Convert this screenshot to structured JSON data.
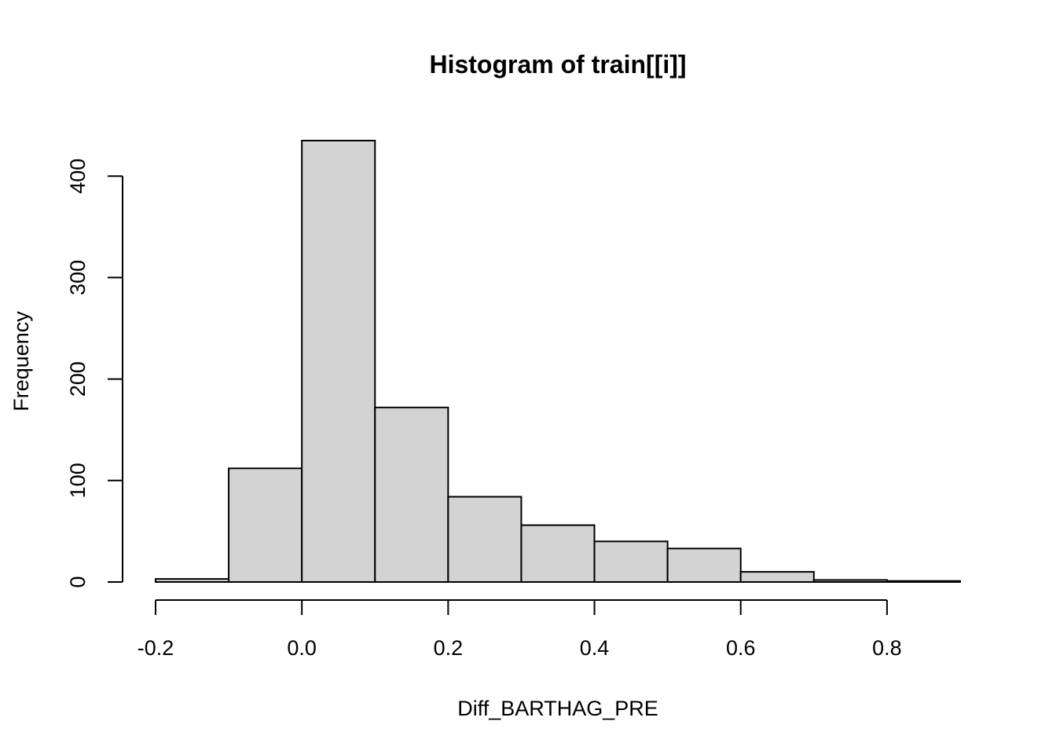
{
  "chart_data": {
    "type": "bar",
    "title": "Histogram of train[[i]]",
    "xlabel": "Diff_BARTHAG_PRE",
    "ylabel": "Frequency",
    "bins": [
      {
        "from": -0.2,
        "to": -0.1,
        "count": 3
      },
      {
        "from": -0.1,
        "to": 0.0,
        "count": 112
      },
      {
        "from": 0.0,
        "to": 0.1,
        "count": 435
      },
      {
        "from": 0.1,
        "to": 0.2,
        "count": 172
      },
      {
        "from": 0.2,
        "to": 0.3,
        "count": 84
      },
      {
        "from": 0.3,
        "to": 0.4,
        "count": 56
      },
      {
        "from": 0.4,
        "to": 0.5,
        "count": 40
      },
      {
        "from": 0.5,
        "to": 0.6,
        "count": 33
      },
      {
        "from": 0.6,
        "to": 0.7,
        "count": 10
      },
      {
        "from": 0.7,
        "to": 0.8,
        "count": 2
      },
      {
        "from": 0.8,
        "to": 0.9,
        "count": 1
      }
    ],
    "xlim": [
      -0.2,
      0.9
    ],
    "ylim": [
      0,
      435
    ],
    "x_ticks": [
      -0.2,
      0.0,
      0.2,
      0.4,
      0.6,
      0.8
    ],
    "x_tick_labels": [
      "-0.2",
      "0.0",
      "0.2",
      "0.4",
      "0.6",
      "0.8"
    ],
    "y_ticks": [
      0,
      100,
      200,
      300,
      400
    ],
    "y_tick_labels": [
      "0",
      "100",
      "200",
      "300",
      "400"
    ],
    "bar_color": "#d3d3d3",
    "border_color": "#000000",
    "background": "#ffffff",
    "grid": false,
    "legend": "none"
  }
}
